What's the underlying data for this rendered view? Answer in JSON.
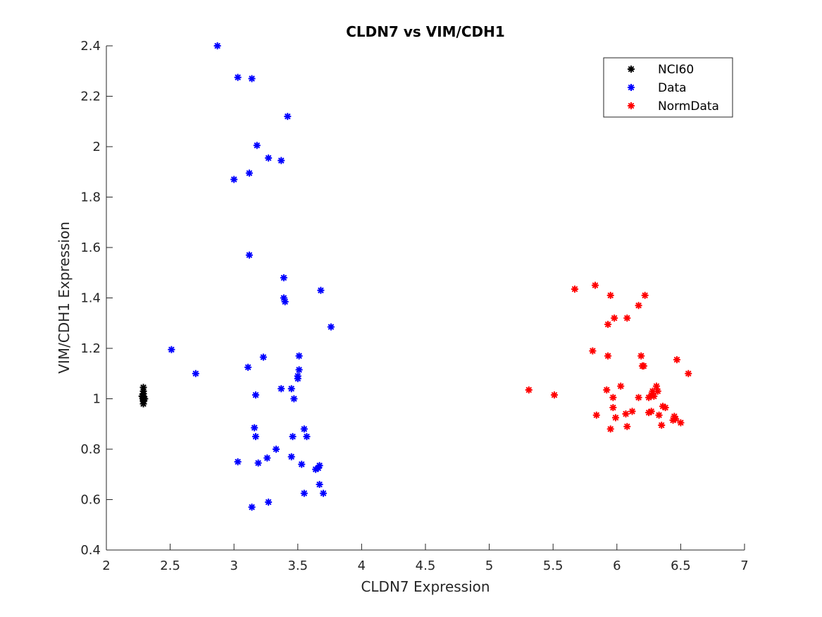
{
  "chart_data": {
    "type": "scatter",
    "title": "CLDN7 vs VIM/CDH1",
    "xlabel": "CLDN7 Expression",
    "ylabel": "VIM/CDH1 Expression",
    "xlim": [
      2,
      7
    ],
    "ylim": [
      0.4,
      2.4
    ],
    "xticks": [
      2,
      2.5,
      3,
      3.5,
      4,
      4.5,
      5,
      5.5,
      6,
      6.5,
      7
    ],
    "xtick_labels": [
      "2",
      "2.5",
      "3",
      "3.5",
      "4",
      "4.5",
      "5",
      "5.5",
      "6",
      "6.5",
      "7"
    ],
    "yticks": [
      0.4,
      0.6,
      0.8,
      1.0,
      1.2,
      1.4,
      1.6,
      1.8,
      2.0,
      2.2,
      2.4
    ],
    "ytick_labels": [
      "0.4",
      "0.6",
      "0.8",
      "1",
      "1.2",
      "1.4",
      "1.6",
      "1.8",
      "2",
      "2.2",
      "2.4"
    ],
    "grid": false,
    "legend_position": "top-right",
    "marker": "asterisk",
    "series": [
      {
        "name": "NCI60",
        "color": "#000000",
        "points": [
          [
            2.29,
            1.045
          ],
          [
            2.29,
            1.03
          ],
          [
            2.29,
            1.02
          ],
          [
            2.29,
            1.01
          ],
          [
            2.29,
            1.005
          ],
          [
            2.29,
            1.0
          ],
          [
            2.29,
            0.995
          ],
          [
            2.29,
            0.99
          ],
          [
            2.29,
            0.98
          ],
          [
            2.28,
            1.01
          ],
          [
            2.3,
            1.0
          ]
        ]
      },
      {
        "name": "Data",
        "color": "#0000ff",
        "points": [
          [
            2.87,
            2.4
          ],
          [
            3.03,
            2.275
          ],
          [
            3.14,
            2.27
          ],
          [
            3.42,
            2.12
          ],
          [
            3.18,
            2.005
          ],
          [
            3.27,
            1.955
          ],
          [
            3.37,
            1.945
          ],
          [
            3.12,
            1.895
          ],
          [
            3.0,
            1.87
          ],
          [
            3.12,
            1.57
          ],
          [
            3.39,
            1.48
          ],
          [
            3.68,
            1.43
          ],
          [
            3.39,
            1.4
          ],
          [
            3.4,
            1.385
          ],
          [
            3.76,
            1.285
          ],
          [
            2.51,
            1.195
          ],
          [
            3.51,
            1.17
          ],
          [
            3.23,
            1.165
          ],
          [
            3.11,
            1.125
          ],
          [
            3.51,
            1.115
          ],
          [
            2.7,
            1.1
          ],
          [
            3.5,
            1.09
          ],
          [
            3.5,
            1.08
          ],
          [
            3.37,
            1.04
          ],
          [
            3.45,
            1.04
          ],
          [
            3.17,
            1.015
          ],
          [
            3.47,
            1.0
          ],
          [
            3.16,
            0.885
          ],
          [
            3.55,
            0.88
          ],
          [
            3.17,
            0.85
          ],
          [
            3.46,
            0.85
          ],
          [
            3.57,
            0.85
          ],
          [
            3.33,
            0.8
          ],
          [
            3.45,
            0.77
          ],
          [
            3.26,
            0.765
          ],
          [
            3.03,
            0.75
          ],
          [
            3.19,
            0.745
          ],
          [
            3.53,
            0.74
          ],
          [
            3.67,
            0.735
          ],
          [
            3.66,
            0.725
          ],
          [
            3.64,
            0.72
          ],
          [
            3.67,
            0.66
          ],
          [
            3.55,
            0.625
          ],
          [
            3.7,
            0.625
          ],
          [
            3.27,
            0.59
          ],
          [
            3.14,
            0.57
          ]
        ]
      },
      {
        "name": "NormData",
        "color": "#ff0000",
        "points": [
          [
            5.83,
            1.45
          ],
          [
            5.67,
            1.435
          ],
          [
            5.95,
            1.41
          ],
          [
            6.22,
            1.41
          ],
          [
            6.17,
            1.37
          ],
          [
            6.08,
            1.32
          ],
          [
            5.98,
            1.32
          ],
          [
            5.93,
            1.295
          ],
          [
            5.81,
            1.19
          ],
          [
            5.93,
            1.17
          ],
          [
            6.19,
            1.17
          ],
          [
            6.47,
            1.155
          ],
          [
            6.2,
            1.13
          ],
          [
            6.21,
            1.13
          ],
          [
            6.56,
            1.1
          ],
          [
            6.03,
            1.05
          ],
          [
            6.31,
            1.05
          ],
          [
            5.31,
            1.035
          ],
          [
            5.92,
            1.035
          ],
          [
            6.28,
            1.03
          ],
          [
            6.32,
            1.03
          ],
          [
            5.51,
            1.015
          ],
          [
            6.27,
            1.015
          ],
          [
            6.29,
            1.01
          ],
          [
            6.17,
            1.005
          ],
          [
            5.97,
            1.005
          ],
          [
            6.25,
            1.005
          ],
          [
            6.36,
            0.97
          ],
          [
            6.38,
            0.965
          ],
          [
            5.97,
            0.965
          ],
          [
            6.27,
            0.95
          ],
          [
            6.12,
            0.95
          ],
          [
            6.25,
            0.945
          ],
          [
            6.07,
            0.94
          ],
          [
            6.33,
            0.935
          ],
          [
            5.84,
            0.935
          ],
          [
            6.45,
            0.93
          ],
          [
            6.46,
            0.92
          ],
          [
            5.99,
            0.925
          ],
          [
            6.44,
            0.915
          ],
          [
            6.5,
            0.905
          ],
          [
            6.35,
            0.895
          ],
          [
            6.08,
            0.89
          ],
          [
            5.95,
            0.88
          ]
        ]
      }
    ]
  }
}
